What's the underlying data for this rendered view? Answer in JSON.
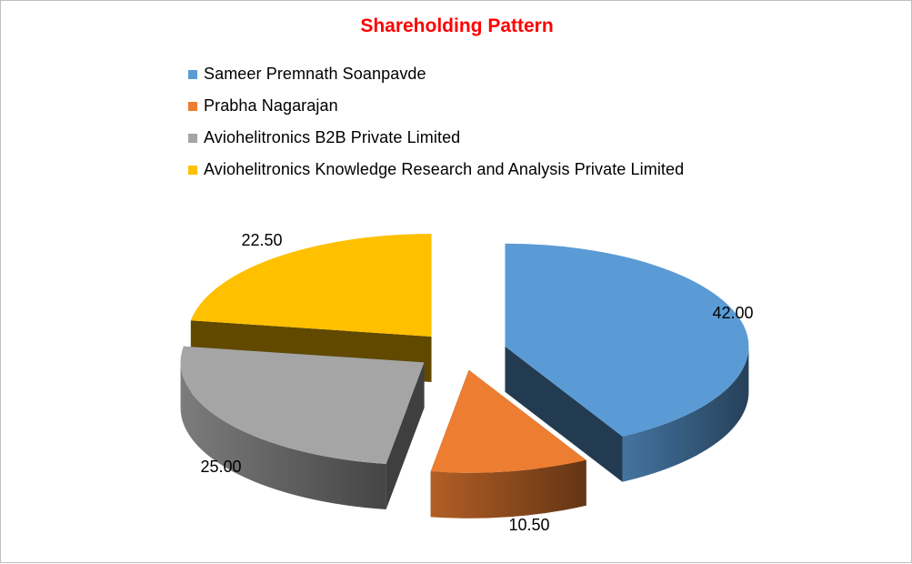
{
  "chart_data": {
    "type": "pie",
    "title": "Shareholding Pattern",
    "categories": [
      "Sameer Premnath Soanpavde",
      "Prabha Nagarajan",
      "Aviohelitronics B2B Private Limited",
      "Aviohelitronics Knowledge Research and Analysis Private Limited"
    ],
    "values": [
      42.0,
      10.5,
      25.0,
      22.5
    ],
    "value_labels": [
      "42.00",
      "10.50",
      "25.00",
      "22.50"
    ],
    "colors": [
      "#5b9bd5",
      "#ed7d31",
      "#a5a5a5",
      "#ffc000"
    ],
    "legend_position": "top",
    "style": "3d-exploded"
  }
}
